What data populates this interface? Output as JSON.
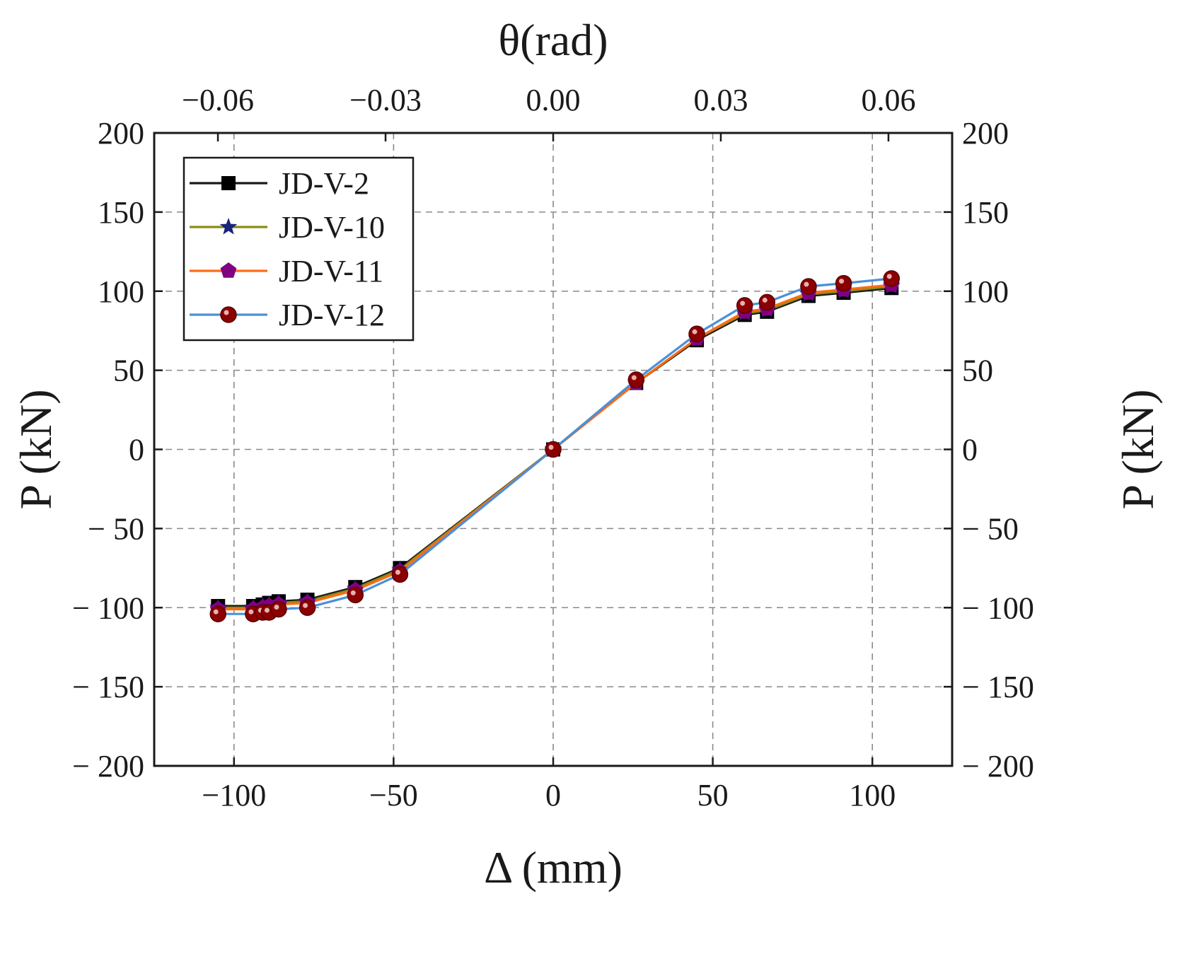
{
  "chart_data": {
    "type": "line",
    "title": "",
    "xlabel": "Δ (mm)",
    "x2label": "θ(rad)",
    "ylabel": "P (kN)",
    "y2label": "P (kN)",
    "xlim": [
      -125,
      125
    ],
    "ylim": [
      -200,
      200
    ],
    "x2lim": [
      -0.0714,
      0.0714
    ],
    "xticks": [
      -100,
      -50,
      0,
      50,
      100
    ],
    "xtick_labels": [
      "−100",
      "−50",
      "0",
      "50",
      "100"
    ],
    "x2ticks": [
      -0.06,
      -0.03,
      0.0,
      0.03,
      0.06
    ],
    "x2tick_labels": [
      "−0.06",
      "−0.03",
      "0.00",
      "0.03",
      "0.06"
    ],
    "yticks": [
      200,
      150,
      100,
      50,
      0,
      -50,
      -100,
      -150,
      -200
    ],
    "ytick_labels": [
      "200",
      "150",
      "100",
      "50",
      "0",
      "− 50",
      "− 100",
      "− 150",
      "− 200"
    ],
    "grid": true,
    "legend_position": "top-left",
    "series": [
      {
        "name": "JD-V-2",
        "color": "#1a1a1a",
        "marker": "square",
        "marker_color": "#000000",
        "x": [
          -105,
          -94,
          -91,
          -89,
          -86,
          -77,
          -62,
          -48,
          0,
          26,
          45,
          60,
          67,
          80,
          91,
          106
        ],
        "y": [
          -99,
          -99,
          -98,
          -97,
          -96,
          -95,
          -87,
          -75,
          0,
          42,
          69,
          85,
          87,
          97,
          99,
          102
        ]
      },
      {
        "name": "JD-V-10",
        "color": "#8c8c14",
        "marker": "star",
        "marker_color": "#1a237e",
        "x": [
          -105,
          -94,
          -91,
          -89,
          -86,
          -77,
          -62,
          -48,
          0,
          26,
          45,
          60,
          67,
          80,
          91,
          106
        ],
        "y": [
          -100,
          -100,
          -99,
          -98,
          -97,
          -96,
          -88,
          -76,
          0,
          42,
          70,
          86,
          88,
          98,
          100,
          103
        ]
      },
      {
        "name": "JD-V-11",
        "color": "#ff6a13",
        "marker": "pentagon",
        "marker_color": "#800080",
        "x": [
          -105,
          -94,
          -91,
          -89,
          -86,
          -77,
          -62,
          -48,
          0,
          26,
          45,
          60,
          67,
          80,
          91,
          106
        ],
        "y": [
          -101,
          -101,
          -100,
          -99,
          -98,
          -97,
          -89,
          -77,
          0,
          42,
          70,
          87,
          89,
          99,
          101,
          104
        ]
      },
      {
        "name": "JD-V-12",
        "color": "#4a90d9",
        "marker": "circle",
        "marker_color": "#8b0000",
        "x": [
          -105,
          -94,
          -91,
          -89,
          -86,
          -77,
          -62,
          -48,
          0,
          26,
          45,
          60,
          67,
          80,
          91,
          106
        ],
        "y": [
          -104,
          -104,
          -103,
          -103,
          -101,
          -100,
          -92,
          -79,
          0,
          44,
          73,
          91,
          93,
          103,
          105,
          108
        ]
      }
    ]
  }
}
